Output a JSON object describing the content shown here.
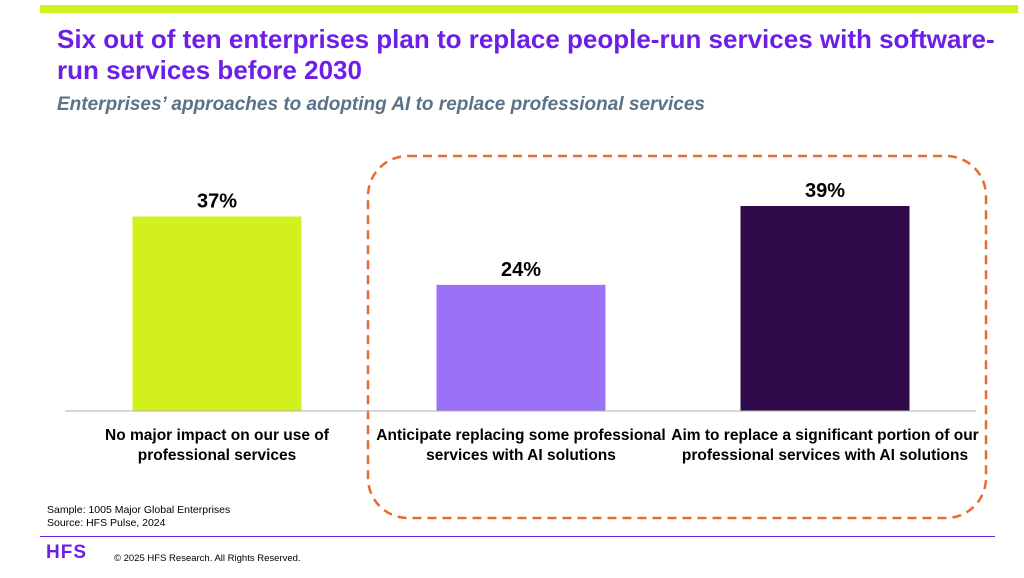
{
  "header": {
    "title": "Six out of ten enterprises plan to replace people-run services with software-run services before 2030",
    "subtitle": "Enterprises’ approaches to adopting AI to replace professional services"
  },
  "chart_data": {
    "type": "bar",
    "categories": [
      "No major impact on our use of professional services",
      "Anticipate replacing some professional services with AI solutions",
      "Aim to replace a significant portion of our professional services with AI solutions"
    ],
    "values": [
      37,
      24,
      39
    ],
    "value_labels": [
      "37%",
      "24%",
      "39%"
    ],
    "colors": [
      "#d2f01e",
      "#9b72f7",
      "#2e0a4a"
    ],
    "ylim": [
      0,
      39
    ],
    "grid": false,
    "highlight_color": "#e86a33"
  },
  "footer": {
    "sample": "Sample: 1005 Major Global Enterprises",
    "source": "Source: HFS Pulse, 2024",
    "logo": "HFS",
    "copyright": "© 2025 HFS Research. All Rights Reserved."
  }
}
